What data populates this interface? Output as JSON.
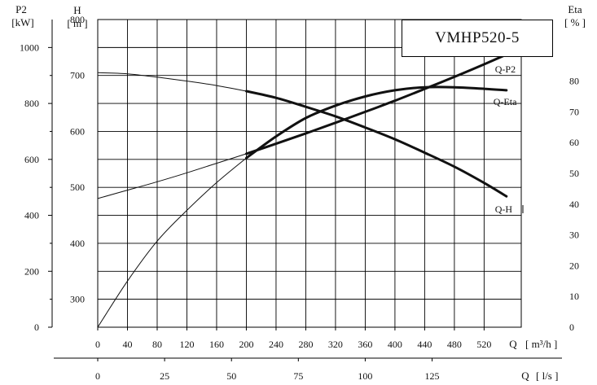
{
  "chart_data": {
    "type": "line",
    "title": "VMHP520-5",
    "axes": {
      "x_flow_m3h": {
        "label": "Q",
        "unit": "[ m³/h ]",
        "range": [
          0,
          570
        ],
        "ticks": [
          0,
          40,
          80,
          120,
          160,
          200,
          240,
          280,
          320,
          360,
          400,
          440,
          480,
          520
        ]
      },
      "x_flow_ls": {
        "label": "Q",
        "unit": "[ l/s ]",
        "ticks": [
          0,
          25,
          50,
          75,
          100,
          125
        ]
      },
      "y_power_P2": {
        "label": "P2",
        "unit": "[kW]",
        "range": [
          0,
          1100
        ],
        "ticks": [
          0,
          200,
          400,
          600,
          800,
          1000
        ]
      },
      "y_head_H": {
        "label": "H",
        "unit": "[ m ]",
        "range": [
          250,
          800
        ],
        "ticks": [
          300,
          400,
          500,
          600,
          700,
          800
        ]
      },
      "y_efficiency_Eta": {
        "label": "Eta",
        "unit": "[ % ]",
        "range": [
          0,
          100
        ],
        "ticks": [
          0,
          10,
          20,
          30,
          40,
          50,
          60,
          70,
          80
        ]
      }
    },
    "grid": true,
    "series": [
      {
        "name": "Q-P2",
        "axis": "y_power_P2",
        "x": [
          0,
          40,
          80,
          120,
          160,
          200,
          240,
          280,
          320,
          360,
          400,
          440,
          480,
          520,
          550
        ],
        "y": [
          460,
          490,
          520,
          552,
          586,
          620,
          656,
          693,
          731,
          770,
          810,
          852,
          895,
          940,
          975
        ]
      },
      {
        "name": "Q-H",
        "axis": "y_head_H",
        "x": [
          0,
          40,
          80,
          120,
          160,
          200,
          240,
          280,
          320,
          360,
          400,
          440,
          480,
          520,
          550
        ],
        "y": [
          705,
          703,
          697,
          690,
          682,
          672,
          660,
          644,
          627,
          607,
          586,
          562,
          537,
          508,
          484
        ]
      },
      {
        "name": "Q-Eta",
        "axis": "y_efficiency_Eta",
        "x": [
          0,
          40,
          80,
          120,
          160,
          200,
          240,
          280,
          320,
          360,
          400,
          440,
          480,
          520,
          550
        ],
        "y": [
          0,
          15,
          28,
          38,
          47,
          55,
          62,
          68,
          72,
          75,
          77,
          78,
          78,
          77.5,
          77
        ]
      }
    ]
  }
}
